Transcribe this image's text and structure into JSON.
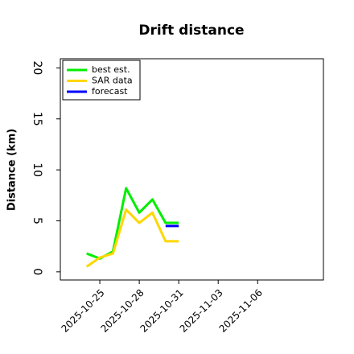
{
  "chart_data": {
    "type": "line",
    "title": "Drift distance",
    "y_label": "Distance (km)",
    "x": [
      "2025-10-24",
      "2025-10-25",
      "2025-10-26",
      "2025-10-27",
      "2025-10-28",
      "2025-10-29",
      "2025-10-30",
      "2025-10-31"
    ],
    "series": [
      {
        "name": "best est.",
        "color": "#00ee00",
        "values": [
          1.8,
          1.3,
          2.0,
          8.2,
          5.8,
          7.1,
          4.8,
          4.8
        ]
      },
      {
        "name": "SAR data",
        "color": "#ffd700",
        "values": [
          0.5,
          1.4,
          1.8,
          6.1,
          4.8,
          5.8,
          3.0,
          3.0
        ]
      },
      {
        "name": "forecast",
        "color": "#0000ff",
        "values": [
          null,
          null,
          null,
          null,
          null,
          null,
          4.5,
          4.5
        ]
      }
    ],
    "xlim": [
      "2025-10-22",
      "2025-11-11"
    ],
    "xticks": [
      "2025-10-25",
      "2025-10-28",
      "2025-10-31",
      "2025-11-03",
      "2025-11-06"
    ],
    "ylim": [
      -0.8,
      20.9
    ],
    "yticks": [
      0,
      5,
      10,
      15,
      20
    ],
    "legend": "upper left"
  }
}
